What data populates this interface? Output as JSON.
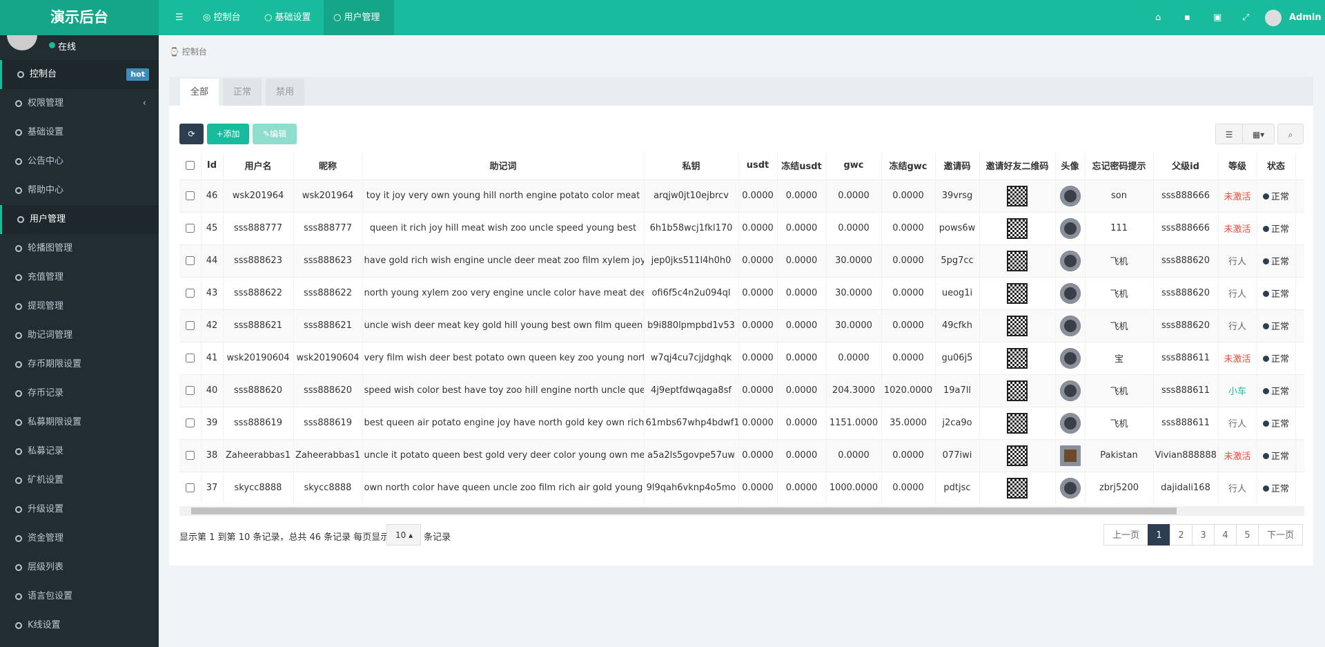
{
  "header": {
    "logo": "演示后台",
    "nav": [
      "控制台",
      "基础设置",
      "用户管理"
    ],
    "user": "Admin"
  },
  "sidebar": {
    "status": "在线",
    "badge": "hot",
    "menu": [
      "控制台",
      "权限管理",
      "基础设置",
      "公告中心",
      "帮助中心",
      "用户管理",
      "轮播图管理",
      "充值管理",
      "提现管理",
      "助记词管理",
      "存币期限设置",
      "存币记录",
      "私募期限设置",
      "私募记录",
      "矿机设置",
      "升级设置",
      "资金管理",
      "层级列表",
      "语言包设置",
      "K线设置"
    ]
  },
  "breadcrumb": "控制台",
  "tabs": [
    "全部",
    "正常",
    "禁用"
  ],
  "toolbar": {
    "add": "添加",
    "edit": "编辑"
  },
  "table": {
    "columns": [
      "Id",
      "用户名",
      "昵称",
      "助记词",
      "私钥",
      "usdt",
      "冻结usdt",
      "gwc",
      "冻结gwc",
      "邀请码",
      "邀请好友二维码",
      "头像",
      "忘记密码提示",
      "父级id",
      "等级",
      "状态"
    ],
    "rows": [
      {
        "cells": [
          46,
          "wsk201964",
          "wsk201964",
          "toy it joy very own young hill north engine potato color meat",
          "arqjw0jt10ejbrcv",
          "0.0000",
          "0.0000",
          "0.0000",
          "0.0000",
          "39vrsg",
          "son",
          "sss888666",
          "未激活",
          "正常"
        ],
        "level_color": "#e74c3c",
        "avatar_color": "#3a3f48"
      },
      {
        "cells": [
          45,
          "sss888777",
          "sss888777",
          "queen it rich joy hill meat wish zoo uncle speed young best",
          "6h1b58wcj1fkl170",
          "0.0000",
          "0.0000",
          "0.0000",
          "0.0000",
          "pows6w",
          "111",
          "sss888666",
          "未激活",
          "正常"
        ],
        "level_color": "#e74c3c",
        "avatar_color": "#3a3f48"
      },
      {
        "cells": [
          44,
          "sss888623",
          "sss888623",
          "have gold rich wish engine uncle deer meat zoo film xylem joy",
          "jep0jks511l4h0h0",
          "0.0000",
          "0.0000",
          "30.0000",
          "0.0000",
          "5pg7cc",
          "飞机",
          "sss888620",
          "行人",
          "正常"
        ],
        "level_color": "#666666",
        "avatar_color": "#3a3f48"
      },
      {
        "cells": [
          43,
          "sss888622",
          "sss888622",
          "north young xylem zoo very engine uncle color have meat deer own",
          "ofi6f5c4n2u094ql",
          "0.0000",
          "0.0000",
          "30.0000",
          "0.0000",
          "ueog1i",
          "飞机",
          "sss888620",
          "行人",
          "正常"
        ],
        "level_color": "#666666",
        "avatar_color": "#3a3f48"
      },
      {
        "cells": [
          42,
          "sss888621",
          "sss888621",
          "uncle wish deer meat key gold hill young best own film queen",
          "b9i880lpmpbd1v53",
          "0.0000",
          "0.0000",
          "30.0000",
          "0.0000",
          "49cfkh",
          "飞机",
          "sss888620",
          "行人",
          "正常"
        ],
        "level_color": "#666666",
        "avatar_color": "#3a3f48"
      },
      {
        "cells": [
          41,
          "wsk20190604",
          "wsk20190604",
          "very film wish deer best potato own queen key zoo young north",
          "w7qj4cu7cjjdghqk",
          "0.0000",
          "0.0000",
          "0.0000",
          "0.0000",
          "gu06j5",
          "宝",
          "sss888611",
          "未激活",
          "正常"
        ],
        "level_color": "#e74c3c",
        "avatar_color": "#3a3f48"
      },
      {
        "cells": [
          40,
          "sss888620",
          "sss888620",
          "speed wish color best have toy zoo hill engine north uncle queen",
          "4j9eptfdwqaga8sf",
          "0.0000",
          "0.0000",
          "204.3000",
          "1020.0000",
          "19a7ll",
          "飞机",
          "sss888611",
          "小车",
          "正常"
        ],
        "level_color": "#18bc9c",
        "avatar_color": "#3a3f48"
      },
      {
        "cells": [
          39,
          "sss888619",
          "sss888619",
          "best queen air potato engine joy have north gold key own rich",
          "61mbs67whp4bdwf1",
          "0.0000",
          "0.0000",
          "1151.0000",
          "35.0000",
          "j2ca9o",
          "飞机",
          "sss888611",
          "行人",
          "正常"
        ],
        "level_color": "#666666",
        "avatar_color": "#3a3f48"
      },
      {
        "cells": [
          38,
          "Zaheerabbas1",
          "Zaheerabbas1",
          "uncle it potato queen best gold very deer color young own meat",
          "a5a2ls5govpe57uw",
          "0.0000",
          "0.0000",
          "0.0000",
          "0.0000",
          "077iwi",
          "Pakistan",
          "Vivian888888",
          "未激活",
          "正常"
        ],
        "level_color": "#e74c3c",
        "avatar_color": "#6b4a2e"
      },
      {
        "cells": [
          37,
          "skycc8888",
          "skycc8888",
          "own north color have queen uncle zoo film rich air gold young",
          "9l9qah6vknp4o5mo",
          "0.0000",
          "0.0000",
          "1000.0000",
          "0.0000",
          "pdtjsc",
          "zbrj5200",
          "dajidali168",
          "行人",
          "正常"
        ],
        "level_color": "#666666",
        "avatar_color": "#3a3f48"
      }
    ]
  },
  "footer": {
    "summary": "显示第 1 到第 10 条记录，总共 46 条记录 每页显示",
    "page_size": "10",
    "suffix": "条记录"
  },
  "pagination": [
    "上一页",
    "1",
    "2",
    "3",
    "4",
    "5",
    "下一页"
  ]
}
